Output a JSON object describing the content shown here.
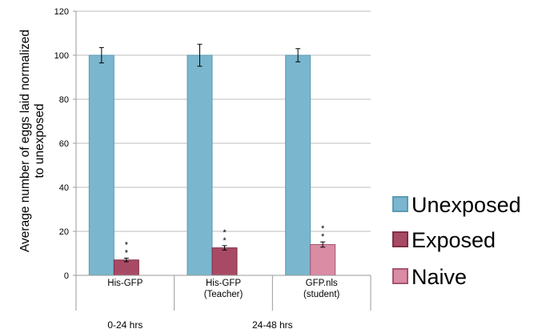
{
  "chart_data": {
    "type": "bar",
    "ylabel": "Average number of eggs laid normalized to unexposed",
    "ylabel_lines": [
      "Average number of eggs laid normalized",
      "to unexposed"
    ],
    "ylim": [
      0,
      120
    ],
    "yticks": [
      0,
      20,
      40,
      60,
      80,
      100,
      120
    ],
    "grid": true,
    "legend_position": "right",
    "categories": [
      {
        "lines": [
          "His-GFP"
        ]
      },
      {
        "lines": [
          "His-GFP",
          "(Teacher)"
        ]
      },
      {
        "lines": [
          "GFP.nls",
          "(student)"
        ]
      }
    ],
    "groups": [
      "0-24 hrs",
      "24-48 hrs"
    ],
    "series": [
      {
        "name": "Unexposed",
        "color": "#7AB6CE",
        "stroke": "#5C9AB3",
        "values": [
          100,
          100,
          100
        ],
        "errors": [
          3.5,
          5,
          3
        ]
      },
      {
        "name": "Exposed",
        "color": "#A84A66",
        "stroke": "#7E2F47",
        "values": [
          7,
          null,
          null
        ],
        "errors": [
          0.8,
          null,
          null
        ],
        "annotations": [
          "**",
          null,
          null
        ]
      },
      {
        "name": "Naive",
        "color": "#D98CA3",
        "stroke": "#A4556F",
        "values": [
          null,
          null,
          14
        ],
        "errors": [
          null,
          null,
          1.2
        ],
        "annotations": [
          null,
          null,
          "**"
        ]
      }
    ],
    "extra_bars": [
      {
        "category_index": 1,
        "value": 12.5,
        "error": 1,
        "color": "#A84A66",
        "stroke": "#7E2F47",
        "annotation": "**"
      }
    ]
  }
}
